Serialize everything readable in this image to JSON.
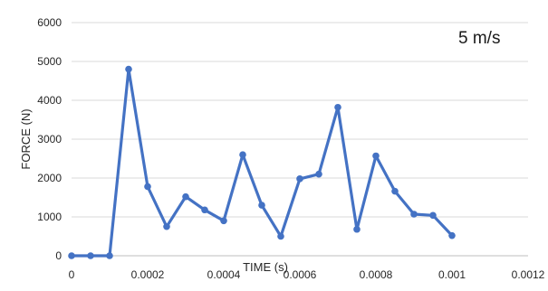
{
  "chart_data": {
    "type": "line",
    "xlabel": "TIME (s)",
    "ylabel": "FORCE (N)",
    "annotation": "5 m/s",
    "xlim": [
      0,
      0.0012
    ],
    "ylim": [
      0,
      6000
    ],
    "x_ticks": [
      "0",
      "0.0002",
      "0.0004",
      "0.0006",
      "0.0008",
      "0.001",
      "0.0012"
    ],
    "y_ticks": [
      "0",
      "1000",
      "2000",
      "3000",
      "4000",
      "5000",
      "6000"
    ],
    "grid": "horizontal",
    "legend": "none",
    "series": [
      {
        "color": "#4472C4",
        "x": [
          0,
          5e-05,
          0.0001,
          0.00015,
          0.0002,
          0.00025,
          0.0003,
          0.00035,
          0.0004,
          0.00045,
          0.0005,
          0.00055,
          0.0006,
          0.00065,
          0.0007,
          0.00075,
          0.0008,
          0.00085,
          0.0009,
          0.00095,
          0.001
        ],
        "y": [
          0,
          0,
          0,
          4800,
          1780,
          750,
          1520,
          1180,
          900,
          2600,
          1300,
          500,
          1980,
          2100,
          3820,
          680,
          2570,
          1660,
          1070,
          1040,
          520
        ]
      }
    ]
  }
}
